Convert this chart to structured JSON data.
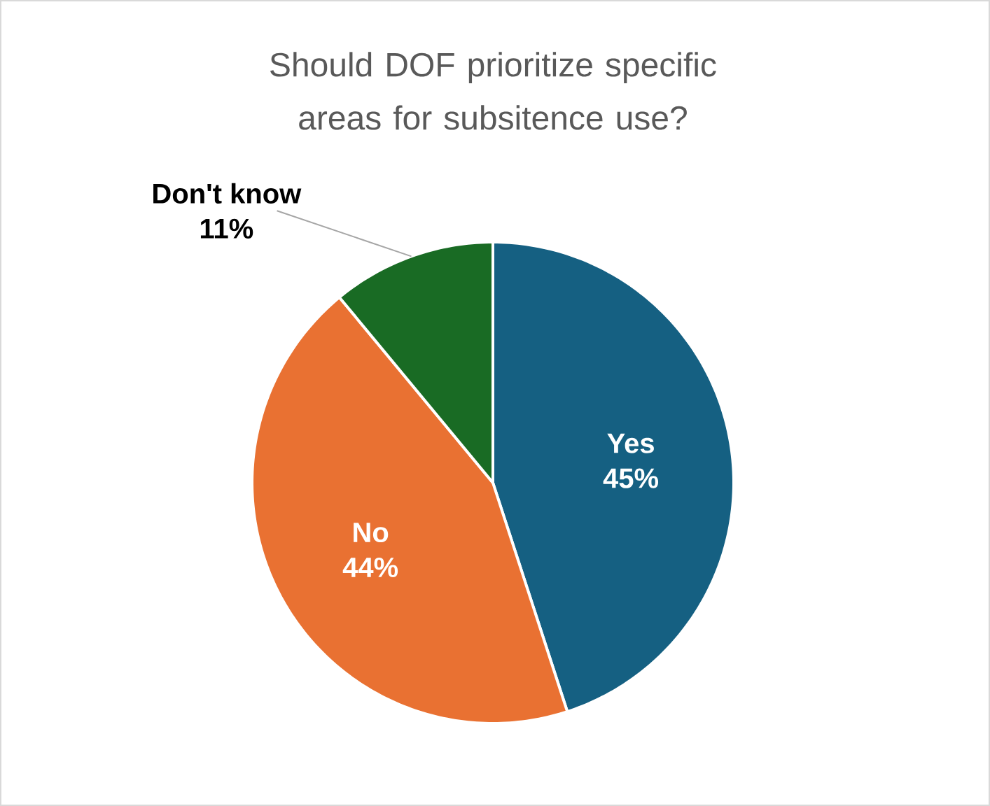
{
  "chart_data": {
    "type": "pie",
    "title": "Should DOF prioritize specific areas for subsitence use?",
    "categories": [
      "Yes",
      "No",
      "Don't know"
    ],
    "values": [
      45,
      44,
      11
    ],
    "value_labels": [
      "45%",
      "44%",
      "11%"
    ],
    "colors": [
      "#156082",
      "#e97132",
      "#196b24"
    ]
  }
}
